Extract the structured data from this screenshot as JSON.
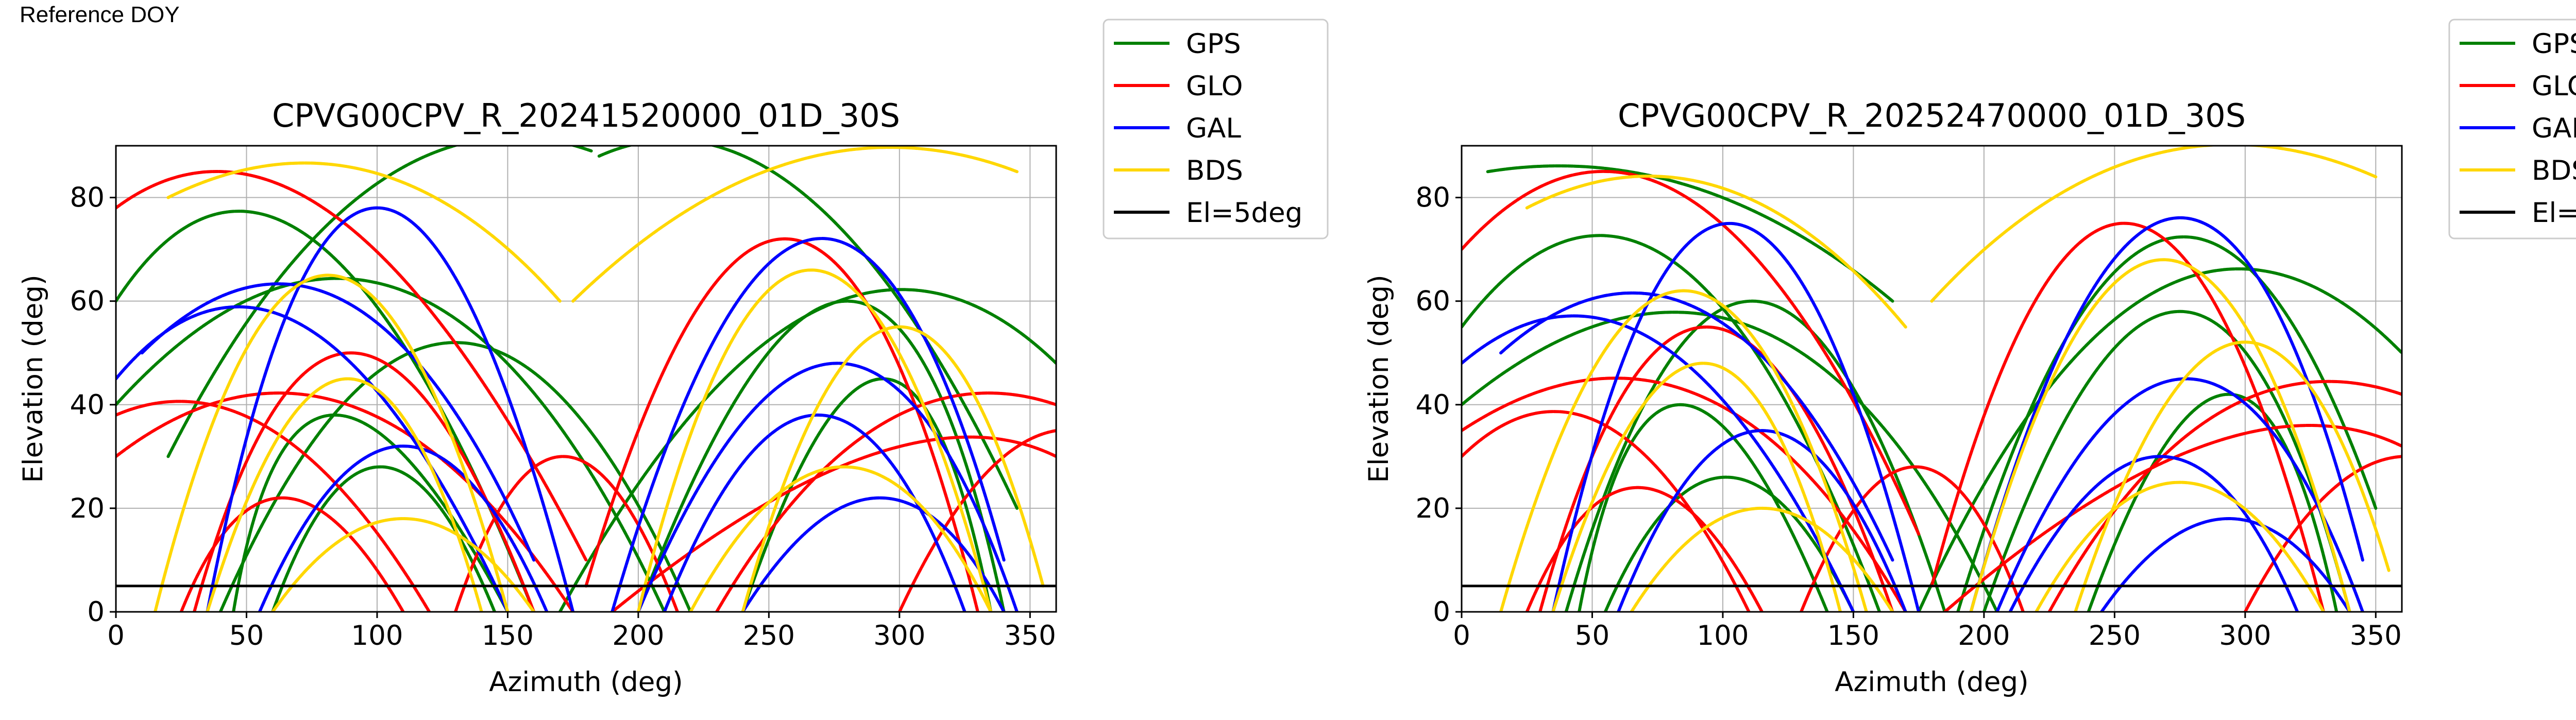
{
  "header": {
    "note": "Reference DOY"
  },
  "legend": [
    {
      "name": "GPS",
      "color": "#008000"
    },
    {
      "name": "GLO",
      "color": "#ff0000"
    },
    {
      "name": "GAL",
      "color": "#0000ff"
    },
    {
      "name": "BDS",
      "color": "#ffd700"
    },
    {
      "name": "El=5deg",
      "color": "#000000"
    }
  ],
  "chart_data": [
    {
      "type": "scatter",
      "title": "CPVG00CPV_R_20241520000_01D_30S",
      "xlabel": "Azimuth (deg)",
      "ylabel": "Elevation (deg)",
      "xlim": [
        0,
        360
      ],
      "ylim": [
        0,
        90
      ],
      "xticks": [
        "0",
        "50",
        "100",
        "150",
        "200",
        "250",
        "300",
        "350"
      ],
      "yticks": [
        "0",
        "20",
        "40",
        "60",
        "80"
      ],
      "reference_line": {
        "label": "El=5deg",
        "y": 5
      },
      "series": [
        {
          "name": "GPS",
          "arcs": [
            [
              40,
              0,
              130,
              52,
              220,
              0
            ],
            [
              20,
              30,
              95,
              82,
              182,
              89
            ],
            [
              185,
              88,
              265,
              80,
              345,
              20
            ],
            [
              0,
              60,
              70,
              72,
              160,
              0
            ],
            [
              200,
              0,
              290,
              60,
              340,
              0
            ],
            [
              45,
              0,
              70,
              38,
              150,
              0
            ],
            [
              240,
              0,
              300,
              45,
              335,
              0
            ],
            [
              0,
              40,
              115,
              62,
              210,
              0
            ],
            [
              170,
              0,
              270,
              58,
              360,
              48
            ],
            [
              60,
              0,
              100,
              28,
              145,
              0
            ]
          ]
        },
        {
          "name": "GLO",
          "arcs": [
            [
              30,
              0,
              85,
              50,
              160,
              0
            ],
            [
              0,
              78,
              80,
              76,
              180,
              10
            ],
            [
              180,
              5,
              260,
              72,
              330,
              0
            ],
            [
              0,
              30,
              90,
              40,
              175,
              0
            ],
            [
              190,
              0,
              300,
              30,
              360,
              30
            ],
            [
              25,
              0,
              60,
              22,
              110,
              0
            ],
            [
              0,
              38,
              60,
              35,
              120,
              0
            ],
            [
              230,
              0,
              290,
              36,
              360,
              40
            ],
            [
              130,
              0,
              170,
              30,
              215,
              0
            ],
            [
              300,
              0,
              330,
              25,
              360,
              35
            ]
          ]
        },
        {
          "name": "GAL",
          "arcs": [
            [
              35,
              0,
              95,
              78,
              175,
              0
            ],
            [
              190,
              0,
              270,
              72,
              340,
              10
            ],
            [
              10,
              50,
              90,
              60,
              160,
              10
            ],
            [
              200,
              0,
              280,
              48,
              345,
              0
            ],
            [
              55,
              0,
              110,
              32,
              165,
              0
            ],
            [
              210,
              0,
              270,
              38,
              325,
              0
            ],
            [
              0,
              45,
              70,
              55,
              150,
              0
            ],
            [
              240,
              0,
              295,
              22,
              340,
              0
            ]
          ]
        },
        {
          "name": "BDS",
          "arcs": [
            [
              15,
              0,
              80,
              65,
              150,
              0
            ],
            [
              200,
              0,
              265,
              66,
              335,
              0
            ],
            [
              20,
              80,
              100,
              85,
              170,
              60
            ],
            [
              175,
              60,
              260,
              87,
              345,
              85
            ],
            [
              60,
              0,
              110,
              18,
              160,
              0
            ],
            [
              220,
              0,
              280,
              28,
              335,
              0
            ],
            [
              35,
              0,
              90,
              45,
              140,
              0
            ],
            [
              240,
              0,
              300,
              55,
              355,
              5
            ]
          ]
        }
      ]
    },
    {
      "type": "scatter",
      "title": "CPVG00CPV_R_20252470000_01D_30S",
      "xlabel": "Azimuth (deg)",
      "ylabel": "Elevation (deg)",
      "xlim": [
        0,
        360
      ],
      "ylim": [
        0,
        90
      ],
      "xticks": [
        "0",
        "50",
        "100",
        "150",
        "200",
        "250",
        "300",
        "350"
      ],
      "yticks": [
        "0",
        "20",
        "40",
        "60",
        "80"
      ],
      "reference_line": {
        "label": "El=5deg",
        "y": 5
      },
      "series": [
        {
          "name": "GPS",
          "arcs": [
            [
              40,
              0,
              110,
              60,
              185,
              0
            ],
            [
              10,
              85,
              90,
              82,
              165,
              60
            ],
            [
              190,
              0,
              270,
              72,
              350,
              20
            ],
            [
              0,
              55,
              80,
              68,
              160,
              0
            ],
            [
              200,
              0,
              280,
              58,
              340,
              0
            ],
            [
              45,
              0,
              75,
              40,
              140,
              0
            ],
            [
              240,
              0,
              300,
              42,
              335,
              0
            ],
            [
              0,
              40,
              120,
              55,
              205,
              0
            ],
            [
              175,
              0,
              265,
              62,
              360,
              50
            ],
            [
              55,
              0,
              100,
              26,
              150,
              0
            ]
          ]
        },
        {
          "name": "GLO",
          "arcs": [
            [
              30,
              0,
              90,
              55,
              165,
              0
            ],
            [
              0,
              70,
              85,
              80,
              175,
              15
            ],
            [
              180,
              5,
              255,
              75,
              330,
              0
            ],
            [
              0,
              35,
              95,
              42,
              170,
              0
            ],
            [
              185,
              0,
              295,
              32,
              360,
              32
            ],
            [
              25,
              0,
              65,
              24,
              115,
              0
            ],
            [
              0,
              30,
              55,
              36,
              110,
              0
            ],
            [
              225,
              0,
              285,
              38,
              360,
              42
            ],
            [
              130,
              0,
              175,
              28,
              215,
              0
            ],
            [
              300,
              0,
              330,
              22,
              360,
              30
            ]
          ]
        },
        {
          "name": "GAL",
          "arcs": [
            [
              35,
              0,
              100,
              75,
              175,
              0
            ],
            [
              195,
              0,
              275,
              76,
              345,
              10
            ],
            [
              15,
              50,
              95,
              58,
              165,
              10
            ],
            [
              205,
              0,
              280,
              45,
              345,
              0
            ],
            [
              60,
              0,
              115,
              35,
              170,
              0
            ],
            [
              210,
              0,
              270,
              30,
              320,
              0
            ],
            [
              0,
              48,
              75,
              52,
              150,
              0
            ],
            [
              245,
              0,
              295,
              18,
              340,
              0
            ]
          ]
        },
        {
          "name": "BDS",
          "arcs": [
            [
              15,
              0,
              85,
              62,
              155,
              0
            ],
            [
              195,
              0,
              270,
              68,
              340,
              0
            ],
            [
              25,
              78,
              100,
              82,
              170,
              55
            ],
            [
              180,
              60,
              260,
              88,
              350,
              84
            ],
            [
              65,
              0,
              115,
              20,
              165,
              0
            ],
            [
              220,
              0,
              275,
              25,
              330,
              0
            ],
            [
              35,
              0,
              95,
              48,
              145,
              0
            ],
            [
              235,
              0,
              300,
              52,
              355,
              8
            ]
          ]
        }
      ]
    }
  ]
}
